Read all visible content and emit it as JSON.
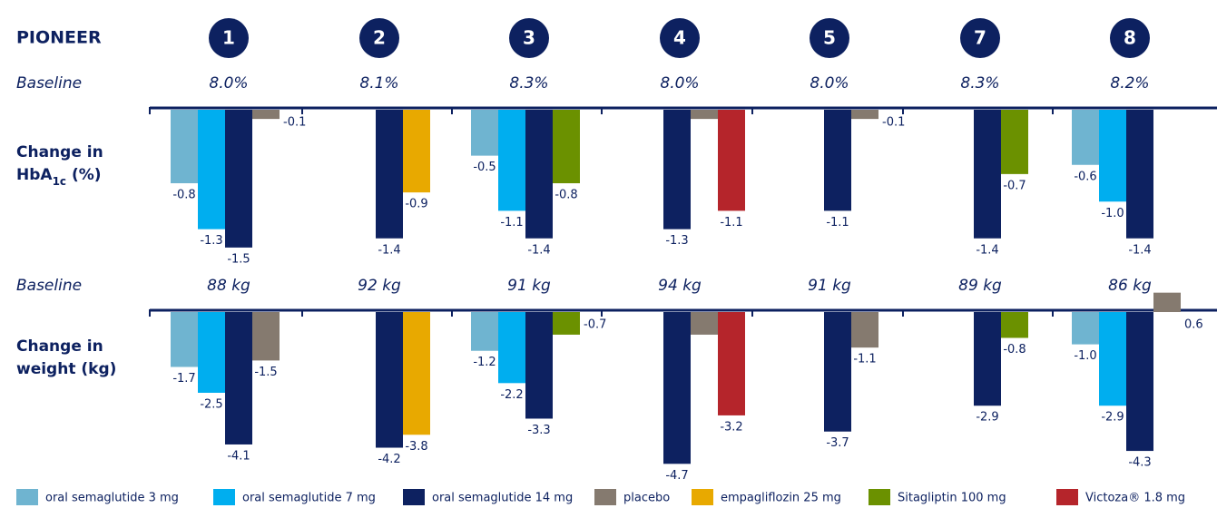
{
  "header": {
    "title": "PIONEER",
    "trials": [
      "1",
      "2",
      "3",
      "4",
      "5",
      "7",
      "8"
    ]
  },
  "legend": [
    {
      "name": "oral semaglutide 3 mg",
      "color": "#6fb4d0"
    },
    {
      "name": "oral semaglutide 7 mg",
      "color": "#00aeef"
    },
    {
      "name": "oral semaglutide 14 mg",
      "color": "#0d2160"
    },
    {
      "name": "placebo",
      "color": "#857a6f"
    },
    {
      "name": "empagliflozin 25 mg",
      "color": "#e8a900"
    },
    {
      "name": "Sitagliptin 100 mg",
      "color": "#6b9100"
    },
    {
      "name": "Victoza® 1.8 mg",
      "color": "#b5252b"
    }
  ],
  "chart_data": [
    {
      "type": "bar",
      "baseline_label": "Baseline",
      "baselines": [
        "8.0%",
        "8.1%",
        "8.3%",
        "8.0%",
        "8.0%",
        "8.3%",
        "8.2%"
      ],
      "ylabel": {
        "line1": "Change in",
        "line2": "HbA",
        "sub": "1c",
        "line2_end": " (%)"
      },
      "ylim": [
        -1.6,
        0
      ],
      "series": [
        {
          "values": [
            -0.8,
            null,
            -0.5,
            null,
            null,
            null,
            -0.6
          ],
          "value_labels": [
            "-0.8",
            null,
            "-0.5",
            null,
            null,
            null,
            "-0.6"
          ]
        },
        {
          "values": [
            -1.3,
            null,
            -1.1,
            null,
            null,
            null,
            -1.0
          ],
          "value_labels": [
            "-1.3",
            null,
            "-1.1",
            null,
            null,
            null,
            "-1.0"
          ]
        },
        {
          "values": [
            -1.5,
            -1.4,
            -1.4,
            -1.3,
            -1.1,
            -1.4,
            -1.4
          ],
          "value_labels": [
            "-1.5",
            "-1.4",
            "-1.4",
            "-1.3",
            "-1.1",
            "-1.4",
            "-1.4"
          ]
        },
        {
          "values": [
            -0.1,
            null,
            null,
            -0.1,
            -0.1,
            null,
            null
          ],
          "value_labels": [
            "-0.1",
            null,
            null,
            "-0.1",
            "-0.1",
            null,
            null
          ]
        },
        {
          "values": [
            null,
            -0.9,
            null,
            null,
            null,
            null,
            null
          ],
          "value_labels": [
            null,
            "-0.9",
            null,
            null,
            null,
            null,
            null
          ]
        },
        {
          "values": [
            null,
            null,
            -0.8,
            null,
            null,
            -0.7,
            null
          ],
          "value_labels": [
            null,
            null,
            "-0.8",
            null,
            null,
            "-0.7",
            null
          ]
        },
        {
          "values": [
            null,
            null,
            null,
            -1.1,
            null,
            null,
            null
          ],
          "value_labels": [
            null,
            null,
            null,
            "-1.1",
            null,
            null,
            null
          ]
        }
      ]
    },
    {
      "type": "bar",
      "baseline_label": "Baseline",
      "baselines": [
        "88 kg",
        "92 kg",
        "91 kg",
        "94 kg",
        "91 kg",
        "89 kg",
        "86 kg"
      ],
      "ylabel": {
        "line1": "Change in",
        "line2": "weight (kg)"
      },
      "ylim": [
        -5,
        0
      ],
      "series": [
        {
          "values": [
            -1.7,
            null,
            -1.2,
            null,
            null,
            null,
            -1.0
          ],
          "value_labels": [
            "-1.7",
            null,
            "-1.2",
            null,
            null,
            null,
            "-1.0"
          ]
        },
        {
          "values": [
            -2.5,
            null,
            -2.2,
            null,
            null,
            null,
            -2.9
          ],
          "value_labels": [
            "-2.5",
            null,
            "-2.2",
            null,
            null,
            null,
            "-2.9"
          ]
        },
        {
          "values": [
            -4.1,
            -4.2,
            -3.3,
            -4.7,
            -3.7,
            -2.9,
            -4.3
          ],
          "value_labels": [
            "-4.1",
            "-4.2",
            "-3.3",
            "-4.7",
            "-3.7",
            "-2.9",
            "-4.3"
          ]
        },
        {
          "values": [
            -1.5,
            null,
            null,
            -0.7,
            -1.1,
            null,
            0.6
          ],
          "value_labels": [
            "-1.5",
            null,
            null,
            "-0.7",
            "-1.1",
            null,
            "0.6"
          ]
        },
        {
          "values": [
            null,
            -3.8,
            null,
            null,
            null,
            null,
            null
          ],
          "value_labels": [
            null,
            "-3.8",
            null,
            null,
            null,
            null,
            null
          ]
        },
        {
          "values": [
            null,
            null,
            -0.7,
            null,
            null,
            -0.8,
            null
          ],
          "value_labels": [
            null,
            null,
            "-0.7",
            null,
            null,
            "-0.8",
            null
          ]
        },
        {
          "values": [
            null,
            null,
            null,
            -3.2,
            null,
            null,
            null
          ],
          "value_labels": [
            null,
            null,
            null,
            "-3.2",
            null,
            null,
            null
          ]
        }
      ]
    }
  ]
}
